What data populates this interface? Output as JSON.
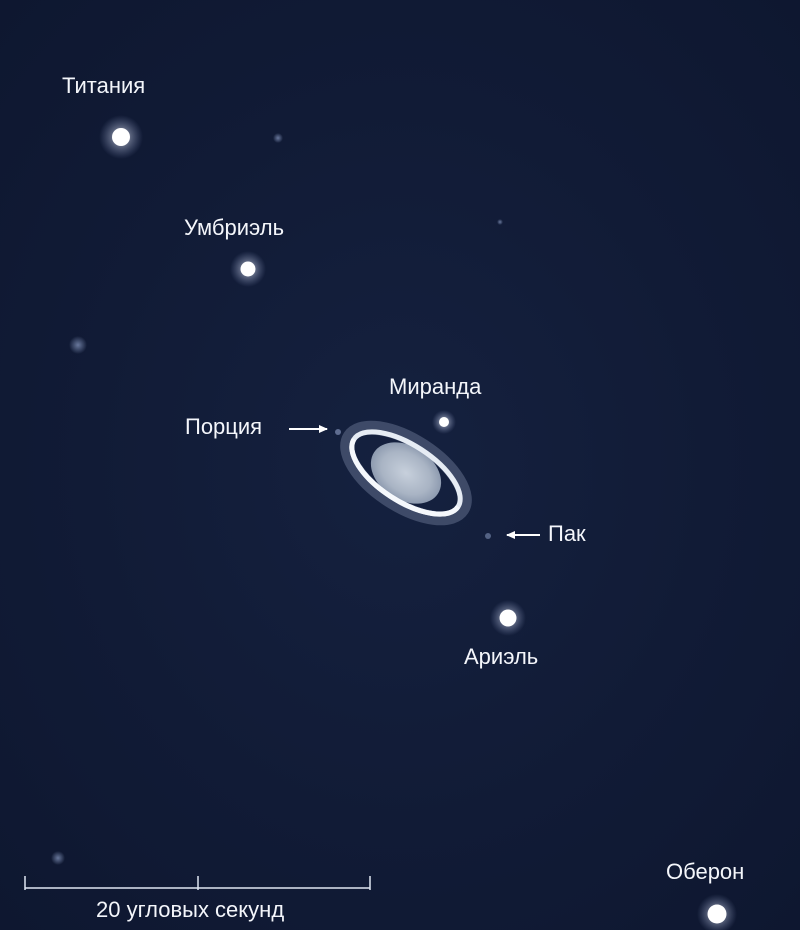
{
  "moons": {
    "titania": "Титания",
    "umbriel": "Умбриэль",
    "miranda": "Миранда",
    "portia": "Порция",
    "puck": "Пак",
    "ariel": "Ариэль",
    "oberon": "Оберон"
  },
  "scale_bar": {
    "label": "20 угловых секунд"
  },
  "colors": {
    "background": "#111b36",
    "star": "#ffffff",
    "planet": "#b8c2cf",
    "ring": "#e6ecf4",
    "label": "#f4f6fb"
  }
}
